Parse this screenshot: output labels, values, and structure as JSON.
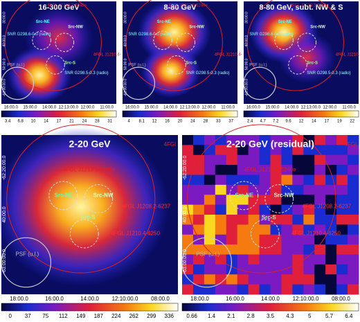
{
  "panels": [
    {
      "title": "16-300 GeV",
      "labels": [
        "4FGL J1213.3-6240e",
        "Src-NE",
        "Src-NW",
        "SNR G298.6-0.0 (radio)",
        "4FGL J1210.4-",
        "PSF (u.l.)",
        "Src-S",
        "SNR G298.5-0.3 (radio)"
      ],
      "xticks": [
        "16:00.0",
        "15:00.0",
        "14:00.0",
        "12:13:00.0",
        "12:00.0",
        "11:00.0"
      ],
      "yticks": [
        "30:00.0",
        "40:00.0",
        "50:00.0",
        "-63:00:00.0"
      ],
      "colorbar": [
        "3.4",
        "6.8",
        "10",
        "14",
        "17",
        "21",
        "24",
        "28",
        "31"
      ]
    },
    {
      "title": "8-80 GeV",
      "labels": [
        "4FGL J1213.3-6240e",
        "Src-NE",
        "Src-NW",
        "SNR G298.6-0.0 (radio)",
        "4FGL J1210.4-",
        "PSF (u.l.)",
        "Src-S",
        "SNR G298.5-0.3 (radio)"
      ],
      "xticks": [
        "16:00.0",
        "15:00.0",
        "14:00.0",
        "12:13:00.0",
        "12:00.0",
        "11:00.0"
      ],
      "yticks": [
        "30:00.0",
        "40:00.0",
        "50:00.0",
        "-63:00:00.0"
      ],
      "colorbar": [
        "4",
        "8.1",
        "12",
        "16",
        "20",
        "24",
        "28",
        "33",
        "37"
      ]
    },
    {
      "title": "8-80 GeV, subt. NW & S",
      "labels": [
        "4FGL J1213.3-6240e",
        "Src-NE",
        "Src-NW",
        "SNR G298.6-0.0 (radio)",
        "4FGL J1210.4-",
        "PSF (u.l.)",
        "Src-S",
        "SNR G298.5-0.3 (radio)"
      ],
      "xticks": [
        "16:00.0",
        "15:00.0",
        "14:00.0",
        "12:13:00.0",
        "12:00.0",
        "11:00.0"
      ],
      "yticks": [
        "30:00.0",
        "40:00.0",
        "50:00.0",
        "-63:00:00.0"
      ],
      "colorbar": [
        "2.4",
        "4.7",
        "7.2",
        "9.6",
        "12",
        "14",
        "17",
        "19",
        "22"
      ]
    },
    {
      "title": "2-20 GeV",
      "labels": [
        "4FGL J1213.3-6240e",
        "Src-NE",
        "Src-NW",
        "4FGL J1208.2-6237",
        "4FGL J1210.4-6250",
        "PSF (u.l.)",
        "Src-S",
        "4FGl"
      ],
      "xticks": [
        "18:00.0",
        "16:00.0",
        "14:00.0",
        "12:10:00.0",
        "08:00.0"
      ],
      "yticks": [
        "-62:20:00.0",
        "40:00.0",
        "-63:00:00.0"
      ],
      "colorbar": [
        "0",
        "37",
        "75",
        "112",
        "149",
        "187",
        "224",
        "262",
        "299",
        "336"
      ]
    },
    {
      "title": "2-20 GeV (residual)",
      "labels": [
        "4FGL J1213.3-6240e",
        "Src-NE",
        "Src-NW",
        "4FGL J1208.2-6237",
        "4FGL J1210.4-6250",
        "PSF (u.l.)",
        "Src-S",
        "4FGl"
      ],
      "xticks": [
        "18:00.0",
        "16:00.0",
        "14:00.0",
        "12:10:00.0",
        "08:00.0"
      ],
      "yticks": [
        "-62:20:00.0",
        "40:00.0",
        "-63:00:00.0"
      ],
      "colorbar": [
        "0.66",
        "1.4",
        "2.1",
        "2.8",
        "3.5",
        "4.3",
        "5",
        "5.7",
        "6.4"
      ]
    }
  ]
}
